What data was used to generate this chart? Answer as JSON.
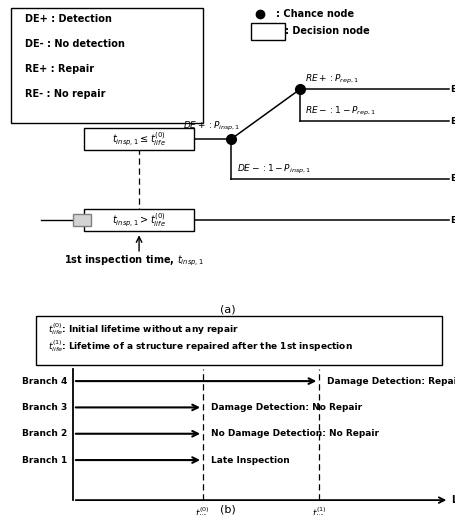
{
  "fs": 7.0,
  "legend_lines": [
    "DE+ : Detection",
    "DE- : No detection",
    "RE+ : Repair",
    "RE- : No repair"
  ],
  "branch_end_labels": [
    "Damage Detection: Repair",
    "Damage Detection: No Repair",
    "No Damage Detection: No Repair",
    "Late Inspection"
  ],
  "branch_names": [
    "Branch 4",
    "Branch 3",
    "Branch 2",
    "Branch 1"
  ]
}
